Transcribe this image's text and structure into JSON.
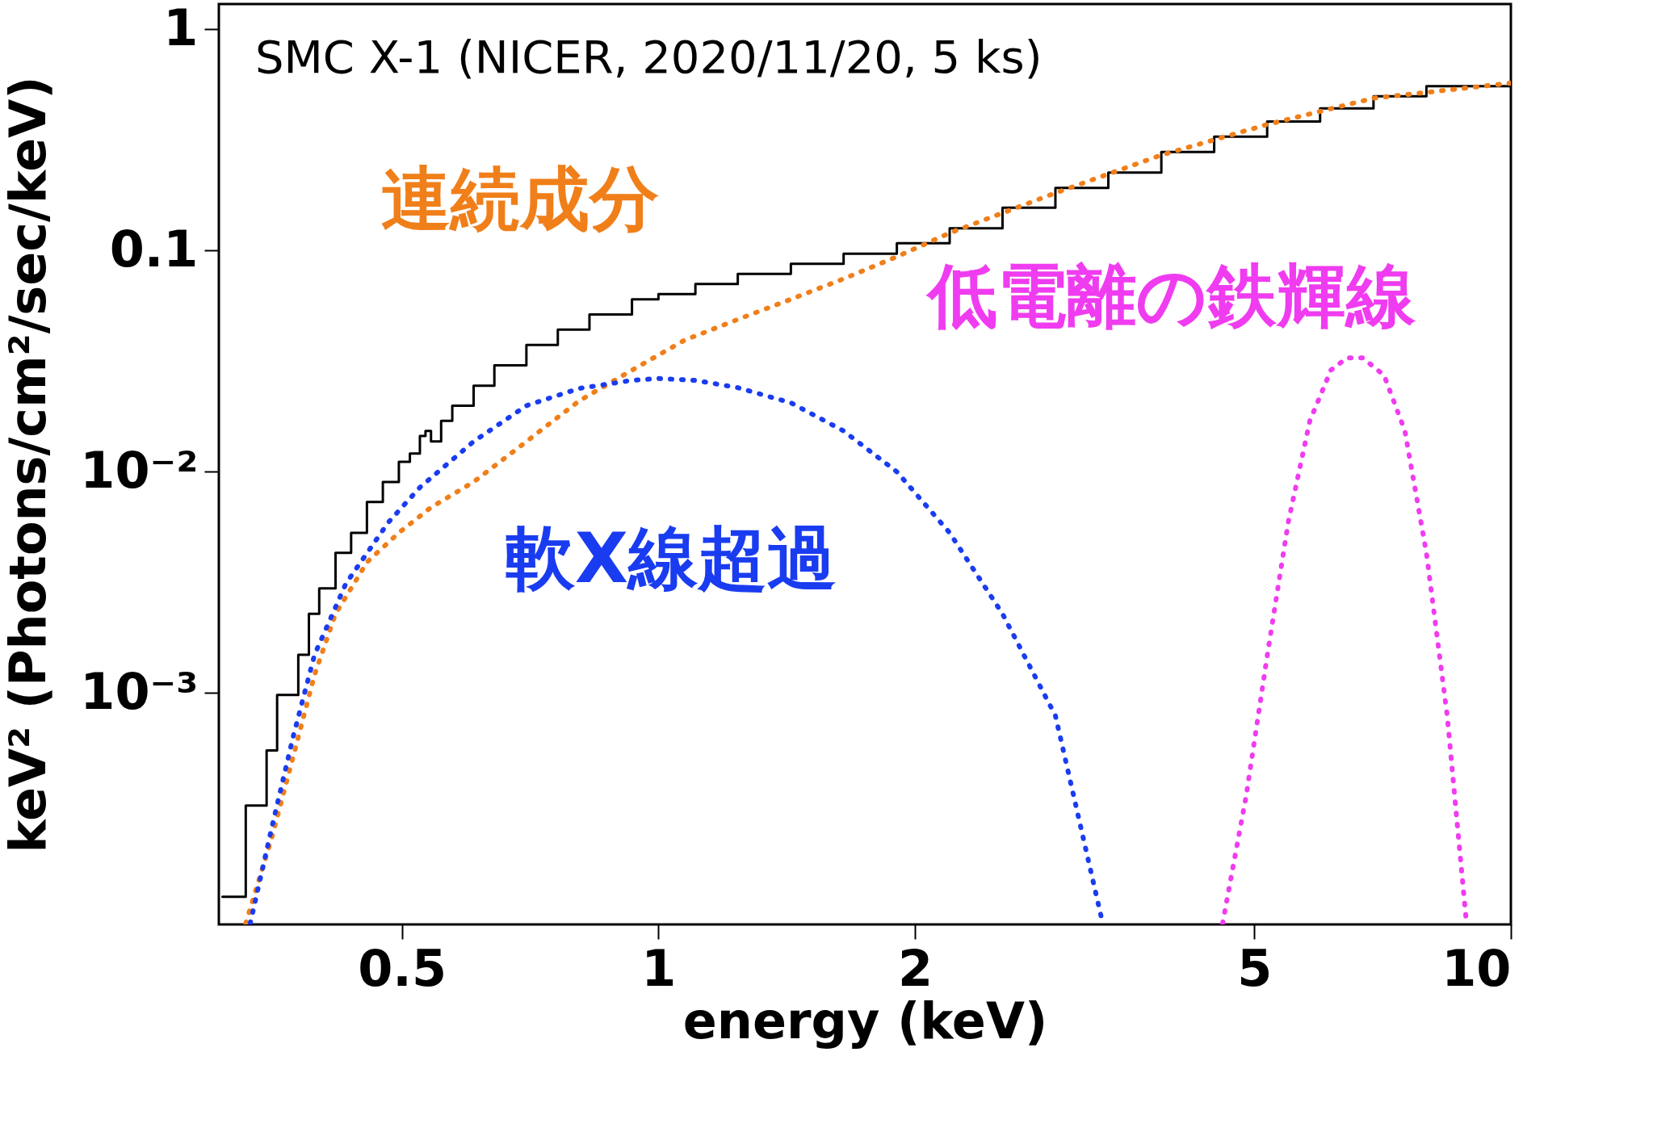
{
  "chart_data": {
    "type": "line",
    "title": "SMC X-1 (NICER, 2020/11/20, 5 ks)",
    "xlabel": "energy (keV)",
    "ylabel": "keV² (Photons/cm²/sec/keV)",
    "log": "xy",
    "grid": false,
    "marker": "none",
    "line_style": "dotted",
    "xlim": [
      0.305,
      10
    ],
    "ylim": [
      9e-05,
      1.3
    ],
    "xticks": [
      0.5,
      1,
      2,
      5,
      10
    ],
    "yticks": [
      {
        "value": 0.001,
        "label": "10⁻³"
      },
      {
        "value": 0.01,
        "label": "10⁻²"
      },
      0.1,
      1
    ],
    "series": [
      {
        "type": "step",
        "line_style": "solid",
        "color": "#000000",
        "x": [
          0.308,
          0.328,
          0.347,
          0.357,
          0.378,
          0.389,
          0.4,
          0.418,
          0.436,
          0.455,
          0.475,
          0.496,
          0.511,
          0.525,
          0.533,
          0.541,
          0.556,
          0.573,
          0.607,
          0.642,
          0.7,
          0.762,
          0.83,
          0.931,
          1,
          1.105,
          1.239,
          1.43,
          1.649,
          1.904,
          2.196,
          2.533,
          2.922,
          3.371,
          3.89,
          4.487,
          5.177,
          5.973,
          6.9,
          7.96,
          10
        ],
        "values": [
          0.00012,
          0.00031,
          0.00055,
          0.00098,
          0.00149,
          0.00228,
          0.00297,
          0.0043,
          0.0053,
          0.0073,
          0.009,
          0.0111,
          0.0121,
          0.0145,
          0.0153,
          0.0137,
          0.017,
          0.0199,
          0.0245,
          0.0303,
          0.0374,
          0.0439,
          0.0514,
          0.0602,
          0.0635,
          0.0706,
          0.0784,
          0.0871,
          0.0968,
          0.108,
          0.126,
          0.156,
          0.192,
          0.225,
          0.279,
          0.327,
          0.383,
          0.439,
          0.498,
          0.553,
          0.583
        ]
      },
      {
        "name": "連続成分",
        "color": "#f07f1a",
        "x": [
          0.328,
          0.352,
          0.373,
          0.395,
          0.418,
          0.455,
          0.496,
          0.541,
          0.607,
          0.7,
          0.807,
          0.931,
          1.074,
          1.239,
          1.43,
          1.649,
          1.904,
          2.196,
          2.922,
          3.89,
          5.177,
          6.9,
          10
        ],
        "values": [
          9.1e-05,
          0.000223,
          0.00052,
          0.00121,
          0.00228,
          0.0039,
          0.0053,
          0.0069,
          0.009,
          0.0137,
          0.0209,
          0.0288,
          0.0394,
          0.0488,
          0.0602,
          0.0745,
          0.0938,
          0.12,
          0.182,
          0.27,
          0.371,
          0.488,
          0.571
        ]
      },
      {
        "name": "軟X線超過",
        "color": "#1a3cf0",
        "x": [
          0.332,
          0.352,
          0.373,
          0.395,
          0.43,
          0.482,
          0.525,
          0.607,
          0.7,
          0.807,
          0.931,
          1,
          1.105,
          1.239,
          1.43,
          1.649,
          1.904,
          2.196,
          2.533,
          2.922,
          3.32
        ],
        "values": [
          9.1e-05,
          0.000248,
          0.00064,
          0.00149,
          0.00313,
          0.0059,
          0.0085,
          0.0137,
          0.0199,
          0.0238,
          0.0259,
          0.0264,
          0.0259,
          0.024,
          0.0205,
          0.0153,
          0.01,
          0.0053,
          0.00228,
          0.00079,
          9.1e-05
        ]
      },
      {
        "name": "低電離の鉄輝線",
        "color": "#f03cf0",
        "x": [
          4.59,
          4.89,
          5.18,
          5.48,
          5.81,
          6.15,
          6.42,
          6.7,
          7.1,
          7.51,
          7.96,
          8.42,
          8.87
        ],
        "values": [
          9.1e-05,
          0.00034,
          0.00149,
          0.0059,
          0.017,
          0.0288,
          0.0327,
          0.0327,
          0.0273,
          0.0153,
          0.0043,
          0.00079,
          9.1e-05
        ]
      }
    ]
  }
}
